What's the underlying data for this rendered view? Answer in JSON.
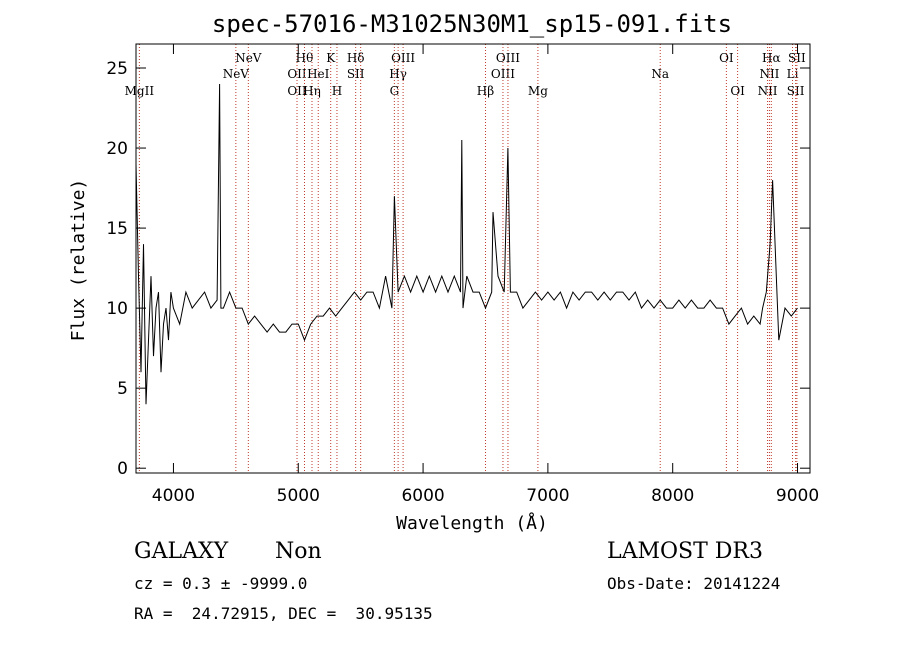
{
  "chart_data": {
    "type": "line",
    "title": "spec-57016-M31025N30M1_sp15-091.fits",
    "xlabel": "Wavelength (Å)",
    "ylabel": "Flux (relative)",
    "xlim": [
      3700,
      9100
    ],
    "ylim": [
      -0.3,
      26.5
    ],
    "x_ticks": [
      "4000",
      "5000",
      "6000",
      "7000",
      "8000",
      "9000"
    ],
    "y_ticks": [
      "0",
      "5",
      "10",
      "15",
      "20",
      "25"
    ],
    "x_tick_values": [
      4000,
      5000,
      6000,
      7000,
      8000,
      9000
    ],
    "y_tick_values": [
      0,
      5,
      10,
      15,
      20,
      25
    ],
    "grid": false,
    "series": [
      {
        "x": [
          3700,
          3720,
          3740,
          3760,
          3780,
          3800,
          3820,
          3840,
          3860,
          3880,
          3900,
          3920,
          3940,
          3960,
          3980,
          4000,
          4050,
          4100,
          4150,
          4200,
          4250,
          4300,
          4350,
          4370,
          4380,
          4400,
          4450,
          4500,
          4550,
          4600,
          4650,
          4700,
          4750,
          4800,
          4850,
          4900,
          4950,
          5000,
          5050,
          5100,
          5150,
          5200,
          5250,
          5300,
          5350,
          5400,
          5450,
          5500,
          5550,
          5600,
          5650,
          5700,
          5750,
          5770,
          5800,
          5850,
          5900,
          5950,
          6000,
          6050,
          6100,
          6150,
          6200,
          6250,
          6300,
          6310,
          6320,
          6350,
          6400,
          6450,
          6500,
          6550,
          6560,
          6600,
          6650,
          6680,
          6700,
          6750,
          6800,
          6850,
          6900,
          6950,
          7000,
          7050,
          7100,
          7150,
          7200,
          7250,
          7300,
          7350,
          7400,
          7450,
          7500,
          7550,
          7600,
          7650,
          7700,
          7750,
          7800,
          7850,
          7900,
          7950,
          8000,
          8050,
          8100,
          8150,
          8200,
          8250,
          8300,
          8350,
          8400,
          8450,
          8500,
          8550,
          8600,
          8650,
          8700,
          8720,
          8750,
          8780,
          8800,
          8830,
          8850,
          8900,
          8950,
          9000
        ],
        "y": [
          19,
          12,
          6,
          14,
          4,
          8,
          12,
          7,
          10,
          11,
          6,
          9,
          10,
          8,
          11,
          10,
          9,
          11,
          10,
          10.5,
          11,
          10,
          10.5,
          24,
          10,
          10,
          11,
          10,
          10,
          9,
          9.5,
          9,
          8.5,
          9,
          8.5,
          8.5,
          9,
          9,
          8,
          9,
          9.5,
          9.5,
          10,
          9.5,
          10,
          10.5,
          11,
          10.5,
          11,
          11,
          10,
          12,
          10,
          17,
          11,
          12,
          11,
          12,
          11,
          12,
          11,
          12,
          11,
          12,
          11,
          20.5,
          10,
          12,
          11,
          11,
          10,
          11,
          16,
          12,
          11,
          20,
          11,
          11,
          10,
          10.5,
          11,
          10.5,
          11,
          10.5,
          11,
          10,
          11,
          10.5,
          11,
          11,
          10.5,
          11,
          10.5,
          11,
          11,
          10.5,
          11,
          10,
          10.5,
          10,
          10.5,
          10,
          10,
          10.5,
          10,
          10.5,
          10,
          10,
          10.5,
          10,
          10,
          9,
          9.5,
          10,
          9,
          9.5,
          9,
          10,
          11,
          14,
          18,
          12,
          8,
          10,
          9.5,
          10
        ]
      }
    ],
    "line_markers": [
      {
        "w": 3727,
        "labels": [
          {
            "row": 3,
            "text": "MgII"
          }
        ]
      },
      {
        "w": 4500,
        "labels": [
          {
            "row": 2,
            "text": "NeV"
          }
        ]
      },
      {
        "w": 4600,
        "labels": [
          {
            "row": 1,
            "text": "NeV"
          }
        ]
      },
      {
        "w": 4990,
        "labels": [
          {
            "row": 2,
            "text": "OII"
          },
          {
            "row": 3,
            "text": "OII"
          }
        ]
      },
      {
        "w": 5050,
        "labels": [
          {
            "row": 1,
            "text": "Hθ"
          }
        ]
      },
      {
        "w": 5110,
        "labels": [
          {
            "row": 3,
            "text": "Hη"
          }
        ]
      },
      {
        "w": 5160,
        "labels": [
          {
            "row": 2,
            "text": "HeI"
          }
        ]
      },
      {
        "w": 5260,
        "labels": [
          {
            "row": 1,
            "text": "K"
          }
        ]
      },
      {
        "w": 5310,
        "labels": [
          {
            "row": 3,
            "text": "H"
          }
        ]
      },
      {
        "w": 5460,
        "labels": [
          {
            "row": 1,
            "text": "Hδ"
          },
          {
            "row": 2,
            "text": "SII"
          }
        ]
      },
      {
        "w": 5500,
        "labels": []
      },
      {
        "w": 5770,
        "labels": [
          {
            "row": 3,
            "text": "G"
          }
        ]
      },
      {
        "w": 5800,
        "labels": [
          {
            "row": 2,
            "text": "Hγ"
          }
        ]
      },
      {
        "w": 5840,
        "labels": [
          {
            "row": 1,
            "text": "OIII"
          }
        ]
      },
      {
        "w": 6500,
        "labels": [
          {
            "row": 3,
            "text": "Hβ"
          }
        ]
      },
      {
        "w": 6640,
        "labels": [
          {
            "row": 2,
            "text": "OIII"
          }
        ]
      },
      {
        "w": 6680,
        "labels": [
          {
            "row": 1,
            "text": "OIII"
          }
        ]
      },
      {
        "w": 6920,
        "labels": [
          {
            "row": 3,
            "text": "Mg"
          }
        ]
      },
      {
        "w": 7900,
        "labels": [
          {
            "row": 2,
            "text": "Na"
          }
        ]
      },
      {
        "w": 8430,
        "labels": [
          {
            "row": 1,
            "text": "OI"
          }
        ]
      },
      {
        "w": 8520,
        "labels": [
          {
            "row": 3,
            "text": "OI"
          }
        ]
      },
      {
        "w": 8760,
        "labels": [
          {
            "row": 3,
            "text": "NII"
          }
        ]
      },
      {
        "w": 8775,
        "labels": [
          {
            "row": 2,
            "text": "NII"
          }
        ]
      },
      {
        "w": 8790,
        "labels": [
          {
            "row": 1,
            "text": "Hα"
          }
        ]
      },
      {
        "w": 8960,
        "labels": [
          {
            "row": 2,
            "text": "Li"
          }
        ]
      },
      {
        "w": 8985,
        "labels": [
          {
            "row": 3,
            "text": "SII"
          }
        ]
      },
      {
        "w": 8995,
        "labels": [
          {
            "row": 1,
            "text": "SII"
          }
        ]
      }
    ]
  },
  "info": {
    "class": "GALAXY",
    "subclass": "Non",
    "survey": "LAMOST DR3",
    "cz": "cz = 0.3 ± -9999.0",
    "obs_date": "Obs-Date: 20141224",
    "coords": "RA =  24.72915, DEC =  30.95135"
  }
}
